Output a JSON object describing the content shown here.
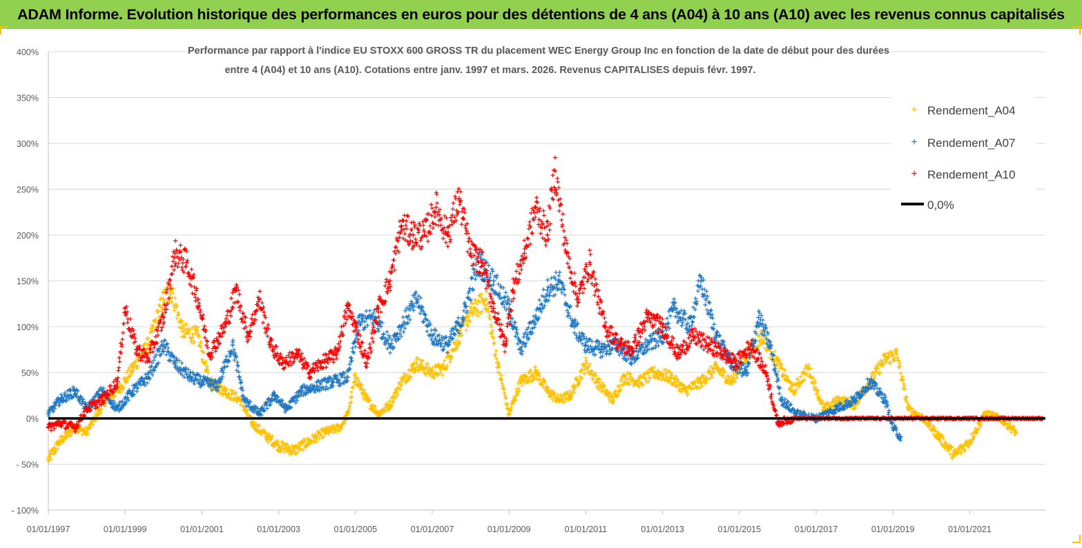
{
  "banner": {
    "title": "ADAM Informe. Evolution historique des performances en euros pour des détentions de 4 ans (A04) à 10 ans (A10) avec les revenus connus capitalisés"
  },
  "colors": {
    "banner_bg": "#92d050",
    "A04": "#ffc000",
    "A07": "#1f77c4",
    "A10": "#ff0000",
    "zero_line": "#000000",
    "grid": "#d9d9d9"
  },
  "chart_data": {
    "type": "scatter",
    "title_line1": "Performance par rapport à l'indice EU STOXX 600 GROSS TR  du placement WEC Energy Group Inc en fonction de la date de début pour des durées",
    "title_line2": "entre 4 (A04) et 10 ans (A10). Cotations entre janv. 1997 et mars. 2026. Revenus CAPITALISES depuis févr. 1997.",
    "ylim": [
      -100,
      400
    ],
    "y_ticks": [
      400,
      350,
      300,
      250,
      200,
      150,
      100,
      50,
      0,
      -50,
      -100
    ],
    "y_tick_labels": [
      "400%",
      "350%",
      "300%",
      "250%",
      "200%",
      "150%",
      "100%",
      "50%",
      "0%",
      "- 50%",
      "- 100%"
    ],
    "x_range": [
      "1997-01-01",
      "2023-01-01"
    ],
    "x_tick_labels": [
      "01/01/1997",
      "01/01/1999",
      "01/01/2001",
      "01/01/2003",
      "01/01/2005",
      "01/01/2007",
      "01/01/2009",
      "01/01/2011",
      "01/01/2013",
      "01/01/2015",
      "01/01/2017",
      "01/01/2019",
      "01/01/2021"
    ],
    "grid": "horizontal",
    "legend_position": "top-right",
    "legend": [
      "Rendement_A04",
      "Rendement_A07",
      "Rendement_A10",
      "0,0%"
    ],
    "series": [
      {
        "name": "Rendement_A04",
        "color": "#ffc000",
        "x": [
          1997.0,
          1997.3,
          1997.7,
          1998.0,
          1998.5,
          1998.9,
          1999.2,
          1999.6,
          2000.0,
          2000.2,
          2000.5,
          2000.9,
          2001.2,
          2001.6,
          2002.0,
          2002.3,
          2002.7,
          2003.0,
          2003.4,
          2003.8,
          2004.2,
          2004.6,
          2004.8,
          2005.0,
          2005.3,
          2005.6,
          2005.9,
          2006.2,
          2006.6,
          2007.0,
          2007.3,
          2007.7,
          2008.0,
          2008.4,
          2008.7,
          2009.0,
          2009.3,
          2009.7,
          2010.0,
          2010.3,
          2010.6,
          2011.0,
          2011.3,
          2011.7,
          2012.0,
          2012.4,
          2012.8,
          2013.2,
          2013.6,
          2014.0,
          2014.4,
          2014.8,
          2015.2,
          2015.6,
          2016.0,
          2016.4,
          2016.8,
          2017.2,
          2017.6,
          2018.0,
          2018.4,
          2018.8,
          2019.1,
          2019.4,
          2019.8,
          2020.2,
          2020.6,
          2021.0,
          2021.4,
          2021.8,
          2022.2
        ],
        "y": [
          -45,
          -25,
          -10,
          -15,
          20,
          35,
          55,
          80,
          130,
          140,
          95,
          90,
          40,
          30,
          20,
          -5,
          -20,
          -30,
          -35,
          -25,
          -15,
          -10,
          5,
          45,
          20,
          5,
          15,
          40,
          60,
          50,
          55,
          90,
          115,
          130,
          60,
          5,
          40,
          50,
          30,
          20,
          25,
          60,
          40,
          20,
          45,
          40,
          50,
          45,
          30,
          40,
          55,
          40,
          70,
          90,
          60,
          30,
          55,
          10,
          20,
          15,
          40,
          65,
          70,
          10,
          0,
          -20,
          -40,
          -25,
          5,
          0,
          -15
        ]
      },
      {
        "name": "Rendement_A07",
        "color": "#1f77c4",
        "x": [
          1997.0,
          1997.3,
          1997.7,
          1998.0,
          1998.4,
          1998.8,
          1999.2,
          1999.6,
          2000.0,
          2000.3,
          2000.7,
          2001.0,
          2001.4,
          2001.8,
          2002.1,
          2002.5,
          2002.9,
          2003.2,
          2003.6,
          2004.0,
          2004.4,
          2004.8,
          2005.1,
          2005.5,
          2005.9,
          2006.2,
          2006.6,
          2007.0,
          2007.4,
          2007.8,
          2008.2,
          2008.6,
          2009.0,
          2009.3,
          2009.7,
          2010.0,
          2010.3,
          2010.7,
          2011.0,
          2011.4,
          2011.8,
          2012.2,
          2012.6,
          2013.0,
          2013.3,
          2013.7,
          2014.0,
          2014.4,
          2014.8,
          2015.2,
          2015.5,
          2015.8,
          2016.1,
          2016.5,
          2017.0,
          2017.5,
          2018.0,
          2018.4,
          2018.8,
          2019.0,
          2019.2
        ],
        "y": [
          5,
          20,
          30,
          10,
          30,
          10,
          30,
          45,
          80,
          60,
          45,
          40,
          35,
          80,
          20,
          5,
          25,
          10,
          30,
          35,
          40,
          45,
          105,
          110,
          80,
          100,
          130,
          90,
          80,
          110,
          170,
          150,
          120,
          75,
          110,
          140,
          150,
          100,
          80,
          75,
          80,
          65,
          80,
          90,
          120,
          100,
          150,
          90,
          60,
          50,
          110,
          80,
          20,
          5,
          0,
          10,
          20,
          40,
          20,
          -10,
          -20
        ]
      },
      {
        "name": "Rendement_A10",
        "color": "#ff0000",
        "x": [
          1997.0,
          1997.3,
          1997.7,
          1998.0,
          1998.4,
          1998.8,
          1999.0,
          1999.3,
          1999.6,
          2000.0,
          2000.3,
          2000.6,
          2000.9,
          2001.2,
          2001.6,
          2001.9,
          2002.2,
          2002.5,
          2002.8,
          2003.1,
          2003.5,
          2003.8,
          2004.1,
          2004.5,
          2004.8,
          2005.0,
          2005.3,
          2005.6,
          2005.9,
          2006.2,
          2006.5,
          2006.8,
          2007.1,
          2007.4,
          2007.7,
          2008.0,
          2008.3,
          2008.6,
          2008.9,
          2009.1,
          2009.4,
          2009.7,
          2010.0,
          2010.2,
          2010.5,
          2010.8,
          2011.1,
          2011.5,
          2011.9,
          2012.2,
          2012.6,
          2013.0,
          2013.4,
          2013.8,
          2014.2,
          2014.6,
          2014.9,
          2015.3,
          2015.7,
          2016.0,
          2016.4,
          2017.0,
          2017.5,
          2018.0,
          2018.5,
          2019.0,
          2019.5,
          2020.0,
          2020.5,
          2021.0,
          2021.5,
          2022.0,
          2022.5,
          2022.9
        ],
        "y": [
          -10,
          -5,
          -10,
          10,
          20,
          40,
          120,
          75,
          65,
          110,
          180,
          170,
          130,
          70,
          100,
          140,
          90,
          130,
          80,
          60,
          70,
          50,
          60,
          70,
          120,
          100,
          60,
          120,
          150,
          210,
          200,
          200,
          230,
          200,
          240,
          180,
          170,
          120,
          80,
          140,
          180,
          230,
          200,
          270,
          180,
          130,
          170,
          100,
          80,
          75,
          110,
          100,
          70,
          90,
          80,
          70,
          60,
          80,
          50,
          -5,
          0,
          0,
          0,
          0,
          0,
          0,
          0,
          0,
          0,
          0,
          0,
          0,
          0,
          0
        ]
      }
    ],
    "reference_line": {
      "name": "0,0%",
      "y": 0
    }
  }
}
